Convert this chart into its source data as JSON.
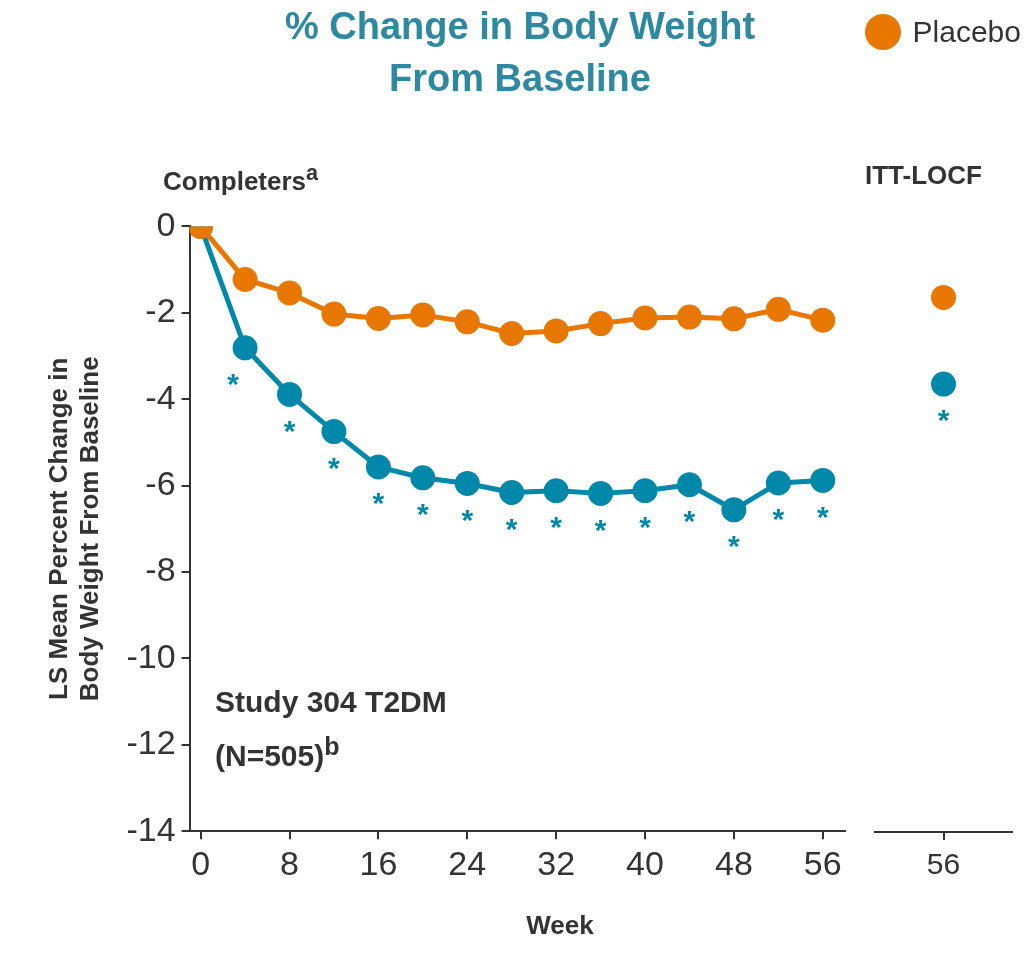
{
  "chart_data": [
    {
      "type": "line",
      "title": "% Change in Body Weight From Baseline",
      "subtitle": "Completers$^{a}$",
      "xlabel": "Week",
      "ylabel": "LS Mean Percent Change in Body Weight From Baseline",
      "x": [
        0,
        4,
        8,
        12,
        16,
        20,
        24,
        28,
        32,
        36,
        40,
        44,
        48,
        52,
        56
      ],
      "series": [
        {
          "name": "Placebo",
          "color": "#e87700",
          "values": [
            0,
            -1.23,
            -1.54,
            -2.03,
            -2.13,
            -2.05,
            -2.21,
            -2.48,
            -2.42,
            -2.25,
            -2.12,
            -2.1,
            -2.14,
            -1.92,
            -2.17
          ]
        },
        {
          "color": "#0088aa",
          "values": [
            0,
            -2.81,
            -3.89,
            -4.75,
            -5.57,
            -5.82,
            -5.95,
            -6.16,
            -6.12,
            -6.18,
            -6.12,
            -5.98,
            -6.56,
            -5.94,
            -5.88
          ]
        }
      ],
      "xlim": [
        -1,
        58
      ],
      "xticks": [
        0,
        8,
        16,
        24,
        32,
        40,
        48,
        56
      ],
      "ylim": [
        -14,
        0
      ],
      "yticks": [
        -14,
        -12,
        -10,
        -8,
        -6,
        -4,
        -2,
        0
      ],
      "annotations": [
        "Study 304 T2DM (N=505)$^{b}$",
        "*",
        "*",
        "*",
        "*",
        "*",
        "*",
        "*",
        "*",
        "*",
        "*",
        "*",
        "*",
        "*",
        "*"
      ],
      "grid": false,
      "legend": "top right",
      "marker": "circle",
      "line_style": "solid"
    },
    {
      "type": "scatter",
      "subtitle": "ITT-LOCF",
      "categories": [
        "56"
      ],
      "series": [
        {
          "color": "#e87700",
          "values": [
            -1.67
          ]
        },
        {
          "color": "#0088aa",
          "values": [
            -3.67
          ]
        }
      ],
      "ylim": [
        -14,
        0
      ],
      "annotations": [
        "*"
      ],
      "grid": false,
      "marker": "circle",
      "tick_labels": "x"
    }
  ]
}
